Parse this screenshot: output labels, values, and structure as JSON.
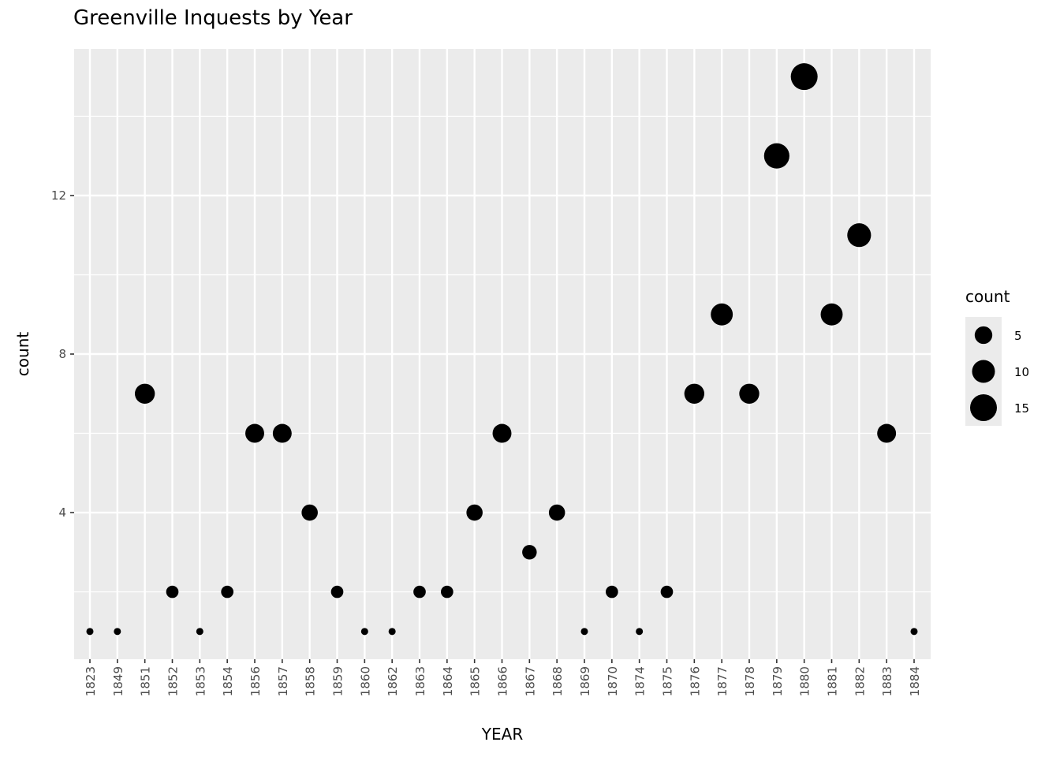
{
  "chart_data": {
    "type": "scatter",
    "title": "Greenville Inquests by Year",
    "xlabel": "YEAR",
    "ylabel": "count",
    "x_type": "categorical",
    "categories": [
      "1823",
      "1849",
      "1851",
      "1852",
      "1853",
      "1854",
      "1856",
      "1857",
      "1858",
      "1859",
      "1860",
      "1862",
      "1863",
      "1864",
      "1865",
      "1866",
      "1867",
      "1868",
      "1869",
      "1870",
      "1874",
      "1875",
      "1876",
      "1877",
      "1878",
      "1879",
      "1880",
      "1881",
      "1882",
      "1883",
      "1884"
    ],
    "values": [
      1,
      1,
      7,
      2,
      1,
      2,
      6,
      6,
      4,
      2,
      1,
      1,
      2,
      2,
      4,
      6,
      3,
      4,
      1,
      2,
      1,
      2,
      7,
      9,
      7,
      13,
      15,
      9,
      11,
      6,
      1
    ],
    "size_mapped_to": "count",
    "ylim": [
      0.3,
      15.7
    ],
    "y_ticks": [
      4,
      8,
      12
    ],
    "y_tick_labels": [
      "4",
      "8",
      "12"
    ],
    "x_tick_rotation": "vertical",
    "grid": true,
    "panel_background": "#ebebeb",
    "grid_color": "#ffffff",
    "point_color": "#000000",
    "legend": {
      "title": "count",
      "placement": "right",
      "entries": [
        {
          "label": "5",
          "value": 5
        },
        {
          "label": "10",
          "value": 10
        },
        {
          "label": "15",
          "value": 15
        }
      ]
    }
  }
}
